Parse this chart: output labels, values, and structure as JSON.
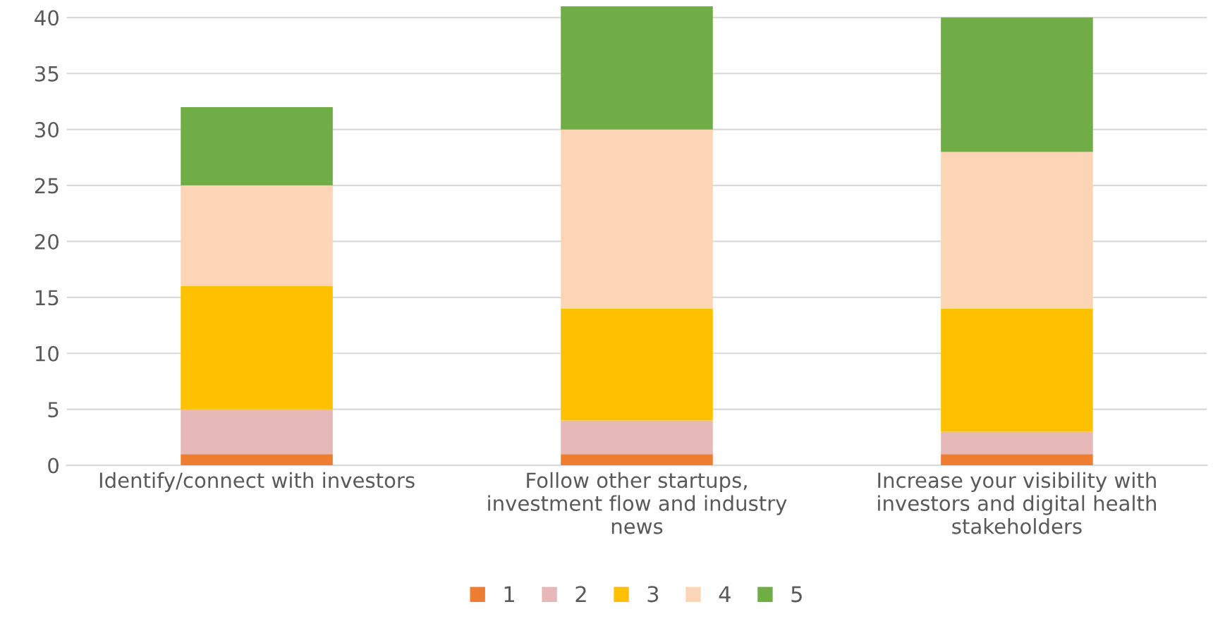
{
  "chart_data": {
    "type": "bar",
    "stacked": true,
    "categories": [
      "Identify/connect with investors",
      "Follow other startups, investment flow and industry news",
      "Increase your visibility with investors and digital health stakeholders"
    ],
    "series": [
      {
        "name": "1",
        "color": "#ed7d31",
        "values": [
          1,
          1,
          1
        ]
      },
      {
        "name": "2",
        "color": "#e6b9b8",
        "values": [
          4,
          3,
          2
        ]
      },
      {
        "name": "3",
        "color": "#ffc000",
        "values": [
          11,
          10,
          11
        ]
      },
      {
        "name": "4",
        "color": "#fbd5b5",
        "values": [
          9,
          16,
          14
        ]
      },
      {
        "name": "5",
        "color": "#70ad47",
        "values": [
          7,
          11,
          12
        ]
      }
    ],
    "ylim": [
      0,
      41
    ],
    "yticks": [
      0,
      5,
      10,
      15,
      20,
      25,
      30,
      35,
      40
    ],
    "grid": "y",
    "legend": "bottom"
  }
}
